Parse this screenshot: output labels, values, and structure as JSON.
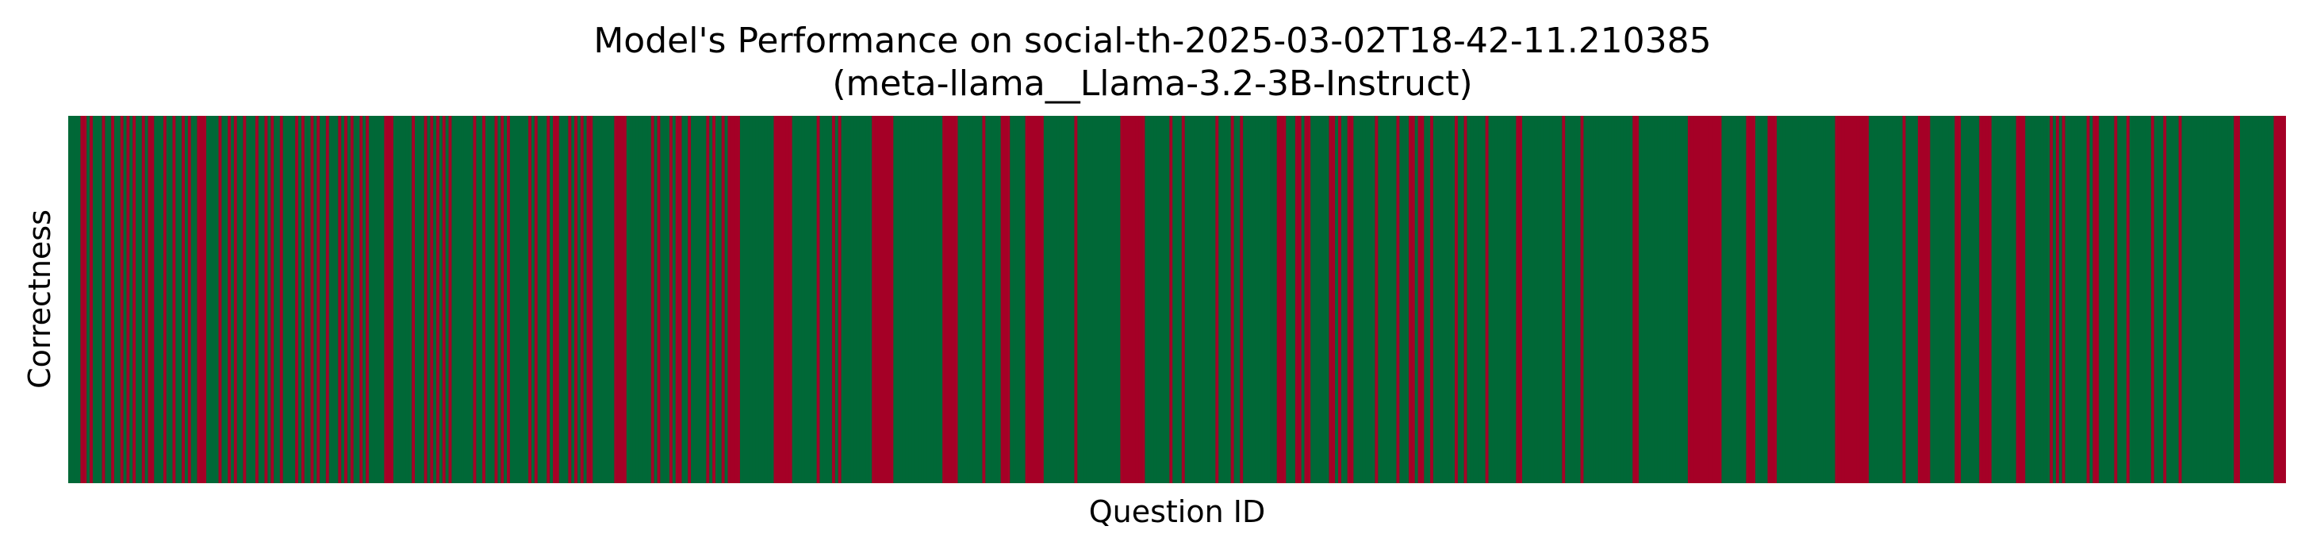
{
  "chart_data": {
    "type": "heatmap",
    "title": "Model's Performance on social-th-2025-03-02T18-42-11.210385",
    "subtitle": "(meta-llama__Llama-3.2-3B-Instruct)",
    "xlabel": "Question ID",
    "ylabel": "Correctness",
    "grid": false,
    "colors": {
      "correct": "#006837",
      "incorrect": "#a50026"
    },
    "values": [
      1,
      1,
      1,
      1,
      0,
      0,
      1,
      0,
      1,
      1,
      1,
      0,
      1,
      1,
      0,
      1,
      1,
      0,
      1,
      0,
      1,
      0,
      1,
      1,
      0,
      1,
      0,
      0,
      1,
      1,
      1,
      0,
      1,
      1,
      0,
      1,
      1,
      0,
      1,
      0,
      1,
      1,
      0,
      0,
      0,
      1,
      1,
      1,
      1,
      0,
      1,
      1,
      0,
      1,
      0,
      1,
      1,
      0,
      1,
      1,
      1,
      0,
      1,
      1,
      0,
      1,
      0,
      1,
      1,
      0,
      1,
      1,
      1,
      1,
      0,
      1,
      0,
      1,
      1,
      0,
      1,
      0,
      1,
      1,
      0,
      1,
      1,
      1,
      0,
      1,
      0,
      1,
      0,
      1,
      1,
      0,
      1,
      0,
      1,
      1,
      1,
      1,
      1,
      0,
      0,
      0,
      1,
      1,
      1,
      1,
      1,
      1,
      0,
      1,
      1,
      1,
      0,
      1,
      0,
      1,
      0,
      1,
      0,
      1,
      0,
      1,
      1,
      1,
      1,
      1,
      1,
      1,
      0,
      1,
      1,
      0,
      1,
      1,
      1,
      0,
      1,
      0,
      1,
      0,
      1,
      1,
      1,
      1,
      1,
      1,
      0,
      1,
      0,
      1,
      1,
      1,
      0,
      1,
      0,
      0,
      1,
      1,
      1,
      0,
      1,
      0,
      1,
      0,
      1,
      0,
      0,
      1,
      1,
      1,
      1,
      1,
      1,
      1,
      0,
      0,
      0,
      0,
      1,
      1,
      1,
      1,
      1,
      1,
      1,
      1,
      0,
      1,
      0,
      1,
      1,
      1,
      0,
      1,
      0,
      0,
      1,
      1,
      0,
      1,
      1,
      1,
      1,
      1,
      0,
      1,
      0,
      1,
      1,
      0,
      1,
      0,
      0,
      0,
      0,
      1,
      1,
      1,
      1,
      1,
      1,
      1,
      1,
      1,
      1,
      1,
      0,
      0,
      0,
      0,
      0,
      0,
      1,
      1,
      1,
      1,
      1,
      1,
      1,
      1,
      0,
      1,
      1,
      1,
      1,
      0,
      1,
      0,
      1,
      1,
      1,
      1,
      1,
      1,
      1,
      1,
      1,
      1,
      0,
      0,
      0,
      0,
      0,
      0,
      0,
      1,
      1,
      1,
      1,
      1,
      1,
      1,
      1,
      1,
      1,
      1,
      1,
      1,
      1,
      1,
      1,
      0,
      0,
      0,
      0,
      0,
      1,
      1,
      1,
      1,
      1,
      1,
      1,
      1,
      0,
      1,
      1,
      1,
      1,
      1,
      0,
      0,
      0,
      1,
      1,
      1,
      1,
      1,
      0,
      0,
      0,
      0,
      0,
      0,
      1,
      1,
      1,
      1,
      1,
      1,
      1,
      1,
      1,
      1,
      0,
      1,
      1,
      1,
      1,
      1,
      1,
      1,
      1,
      1,
      1,
      1,
      1,
      1,
      1,
      0,
      0,
      0,
      0,
      0,
      0,
      0,
      0,
      1,
      1,
      1,
      1,
      1,
      1,
      1,
      1,
      0,
      1,
      1,
      1,
      0,
      1,
      1,
      1,
      1,
      1,
      1,
      1,
      1,
      1,
      1,
      0,
      1,
      1,
      1,
      1,
      0,
      1,
      1,
      0,
      1,
      1,
      1,
      1,
      1,
      1,
      1,
      1,
      1,
      1,
      1,
      0,
      0,
      0,
      1,
      1,
      1,
      0,
      0,
      1,
      0,
      0,
      1,
      1,
      1,
      1,
      1,
      1,
      0,
      0,
      1,
      0,
      1,
      1,
      0,
      0,
      1,
      1,
      1,
      1,
      1,
      1,
      1,
      0,
      1,
      1,
      1,
      1,
      1,
      1,
      0,
      1,
      1,
      1,
      0,
      0,
      1,
      0,
      0,
      1,
      1,
      0,
      1,
      1,
      1,
      1,
      1,
      1,
      1,
      0,
      1,
      1,
      0,
      1,
      1,
      1,
      1,
      1,
      1,
      0,
      1,
      1,
      1,
      1,
      1,
      1,
      1,
      1,
      1,
      0,
      0,
      1,
      1,
      1,
      1,
      1,
      1,
      1,
      1,
      1,
      1,
      1,
      1,
      1,
      0,
      1,
      1,
      1,
      1,
      1,
      0,
      1,
      1,
      1,
      1,
      1,
      1,
      1,
      1,
      1,
      1,
      1,
      1,
      1,
      1,
      1,
      1,
      0,
      0,
      1,
      1,
      1,
      1,
      1,
      1,
      1,
      1,
      1,
      1,
      1,
      1,
      1,
      1,
      1,
      1,
      0,
      0,
      0,
      0,
      0,
      0,
      0,
      0,
      0,
      0,
      0,
      1,
      1,
      1,
      1,
      1,
      1,
      1,
      1,
      0,
      0,
      0,
      1,
      1,
      1,
      1,
      0,
      0,
      0,
      1,
      1,
      1,
      1,
      1,
      1,
      1,
      1,
      1,
      1,
      1,
      1,
      1,
      1,
      1,
      1,
      1,
      1,
      1,
      0,
      0,
      0,
      0,
      0,
      0,
      0,
      0,
      0,
      0,
      0,
      1,
      1,
      1,
      1,
      1,
      1,
      1,
      1,
      1,
      1,
      1,
      0,
      1,
      1,
      1,
      1,
      0,
      0,
      0,
      0,
      1,
      1,
      1,
      1,
      1,
      1,
      1,
      1,
      0,
      0,
      1,
      1,
      1,
      1,
      1,
      1,
      0,
      0,
      0,
      0,
      1,
      1,
      1,
      1,
      1,
      1,
      1,
      1,
      0,
      0,
      0,
      1,
      1,
      1,
      1,
      1,
      1,
      1,
      1,
      0,
      1,
      0,
      1,
      0,
      1,
      1,
      1,
      1,
      1,
      1,
      1,
      0,
      1,
      0,
      0,
      1,
      1,
      1,
      1,
      1,
      0,
      1,
      1,
      1,
      0,
      1,
      1,
      1,
      1,
      1,
      1,
      1,
      0,
      1,
      1,
      1,
      0,
      1,
      1,
      1,
      1,
      0,
      1,
      1,
      1,
      1,
      1,
      1,
      1,
      1,
      1,
      1,
      1,
      1,
      1,
      1,
      1,
      1,
      1,
      0,
      0,
      1,
      1,
      1,
      1,
      1,
      1,
      1,
      1,
      1,
      1,
      1,
      0,
      0,
      0,
      0
    ]
  }
}
